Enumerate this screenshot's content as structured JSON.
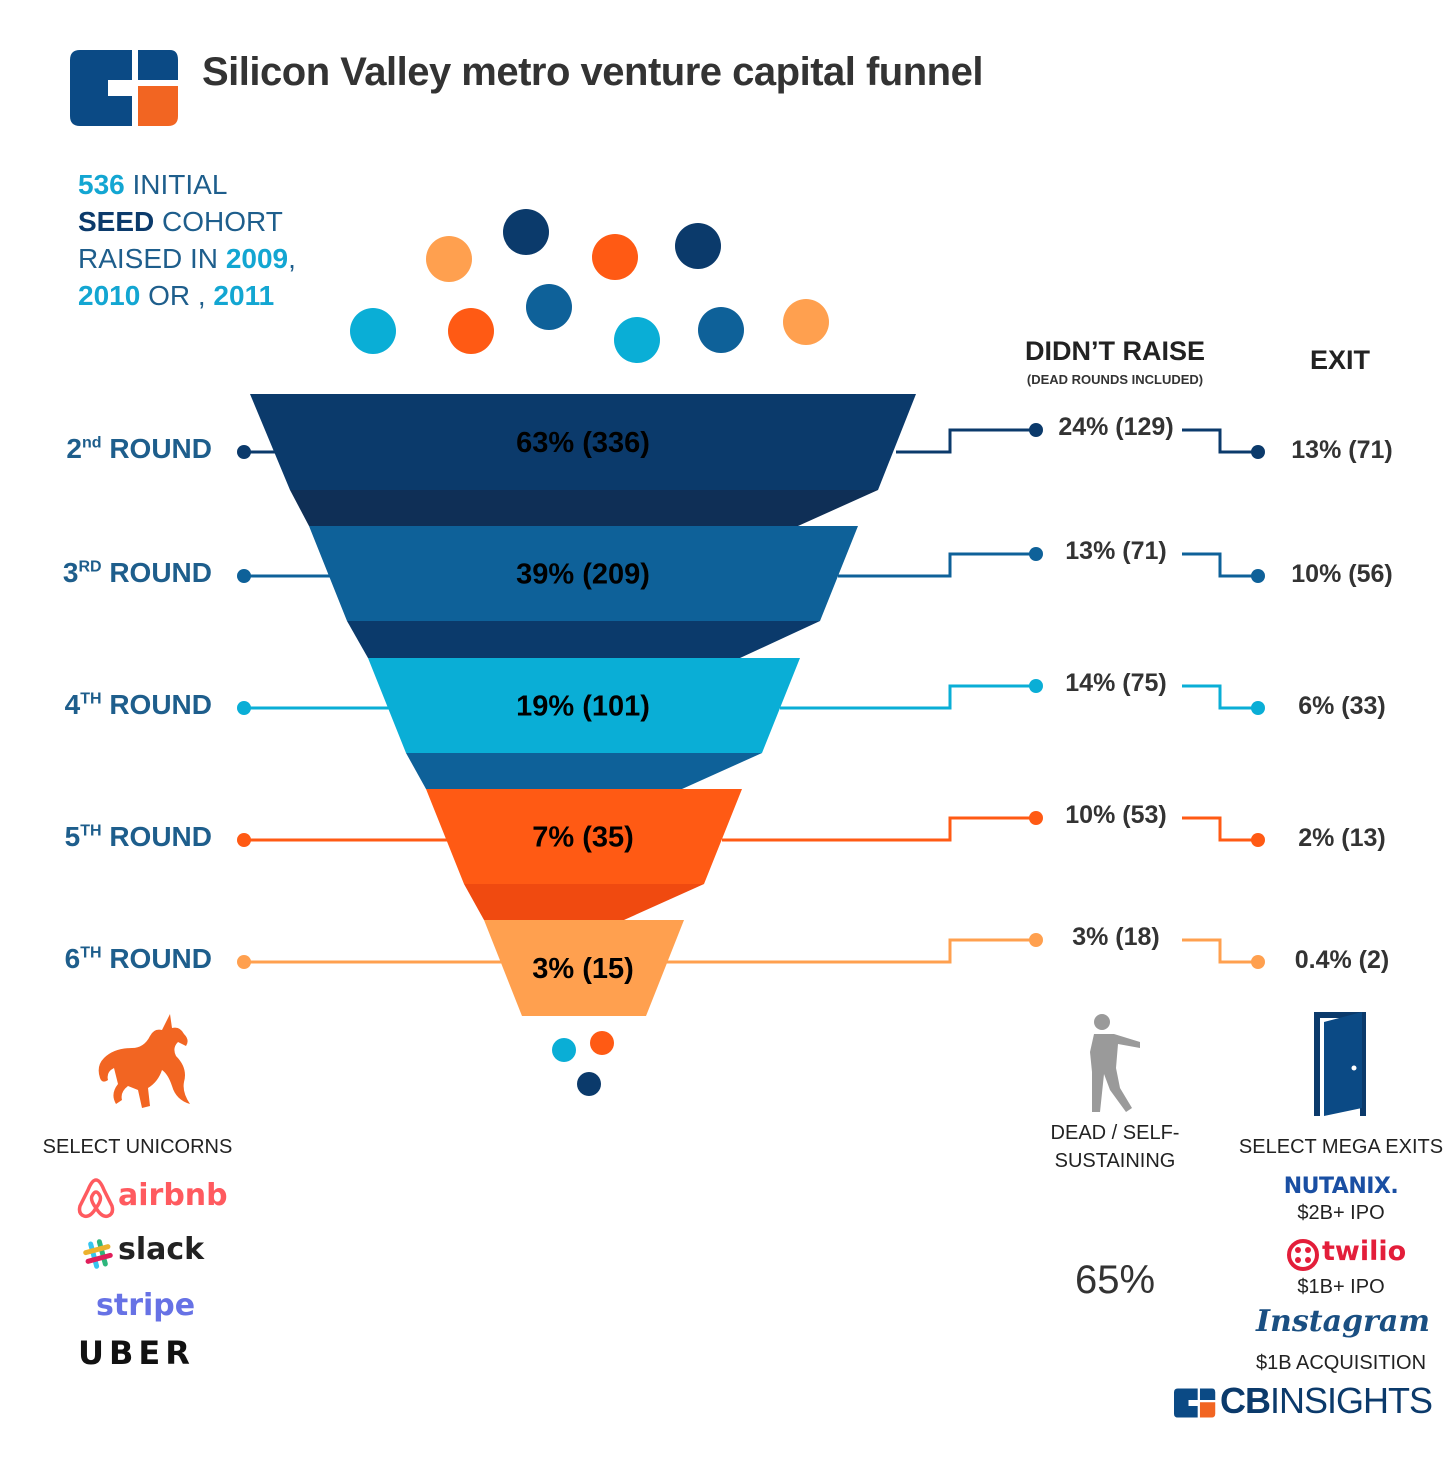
{
  "title": "Silicon Valley metro venture capital funnel",
  "intro": {
    "count": "536",
    "initial": " INITIAL",
    "seed": "SEED",
    "cohort": " COHORT",
    "raised_in": "RAISED IN ",
    "year1": "2009",
    "comma": ",",
    "year2": "2010",
    "or": " OR , ",
    "year3": "2011"
  },
  "headers": {
    "didnt_raise": "DIDN’T RAISE",
    "didnt_raise_sub": "(DEAD ROUNDS INCLUDED)",
    "exit": "EXIT"
  },
  "chart_data": {
    "type": "funnel",
    "title": "Silicon Valley metro venture capital funnel",
    "initial_cohort": 536,
    "stages": [
      {
        "round_num": "2",
        "round_sup": "nd",
        "round_word": " ROUND",
        "label": "63% (336)",
        "pct": 63,
        "count": 336,
        "didnt_raise": "24% (129)",
        "exit": "13% (71)",
        "color": "#0b3a6b"
      },
      {
        "round_num": "3",
        "round_sup": "RD",
        "round_word": " ROUND",
        "label": "39% (209)",
        "pct": 39,
        "count": 209,
        "didnt_raise": "13% (71)",
        "exit": "10% (56)",
        "color": "#0e6199"
      },
      {
        "round_num": "4",
        "round_sup": "TH",
        "round_word": " ROUND",
        "label": "19% (101)",
        "pct": 19,
        "count": 101,
        "didnt_raise": "14% (75)",
        "exit": "6% (33)",
        "color": "#0aaed6"
      },
      {
        "round_num": "5",
        "round_sup": "TH",
        "round_word": " ROUND",
        "label": "7% (35)",
        "pct": 7,
        "count": 35,
        "didnt_raise": "10% (53)",
        "exit": "2% (13)",
        "color": "#ff5a14"
      },
      {
        "round_num": "6",
        "round_sup": "TH",
        "round_word": " ROUND",
        "label": "3% (15)",
        "pct": 3,
        "count": 15,
        "didnt_raise": "3% (18)",
        "exit": "0.4% (2)",
        "color": "#ffa04f"
      }
    ],
    "dead_total": "65%"
  },
  "unicorns": {
    "caption": "SELECT UNICORNS",
    "logos": [
      "airbnb",
      "slack",
      "stripe",
      "UBER"
    ]
  },
  "dead": {
    "caption_line1": "DEAD / SELF-",
    "caption_line2": "SUSTAINING"
  },
  "mega_exits": {
    "caption": "SELECT MEGA EXITS",
    "items": [
      {
        "brand": "NUTANIX.",
        "detail": "$2B+ IPO"
      },
      {
        "brand": "twilio",
        "detail": "$1B+ IPO"
      },
      {
        "brand": "Instagram",
        "detail": "$1B ACQUISITION"
      }
    ]
  },
  "footer": {
    "brand_bold": "CB",
    "brand_thin": "INSIGHTS"
  },
  "colors": {
    "navy": "#0b3a6b",
    "blue": "#0e6199",
    "cyan": "#0aaed6",
    "orange": "#ff5a14",
    "peach": "#ffa04f",
    "brand_orange": "#f26522"
  },
  "icons": [
    "cb-logo-icon",
    "unicorn-icon",
    "zombie-icon",
    "door-icon",
    "airbnb-icon",
    "slack-icon",
    "twilio-icon"
  ]
}
